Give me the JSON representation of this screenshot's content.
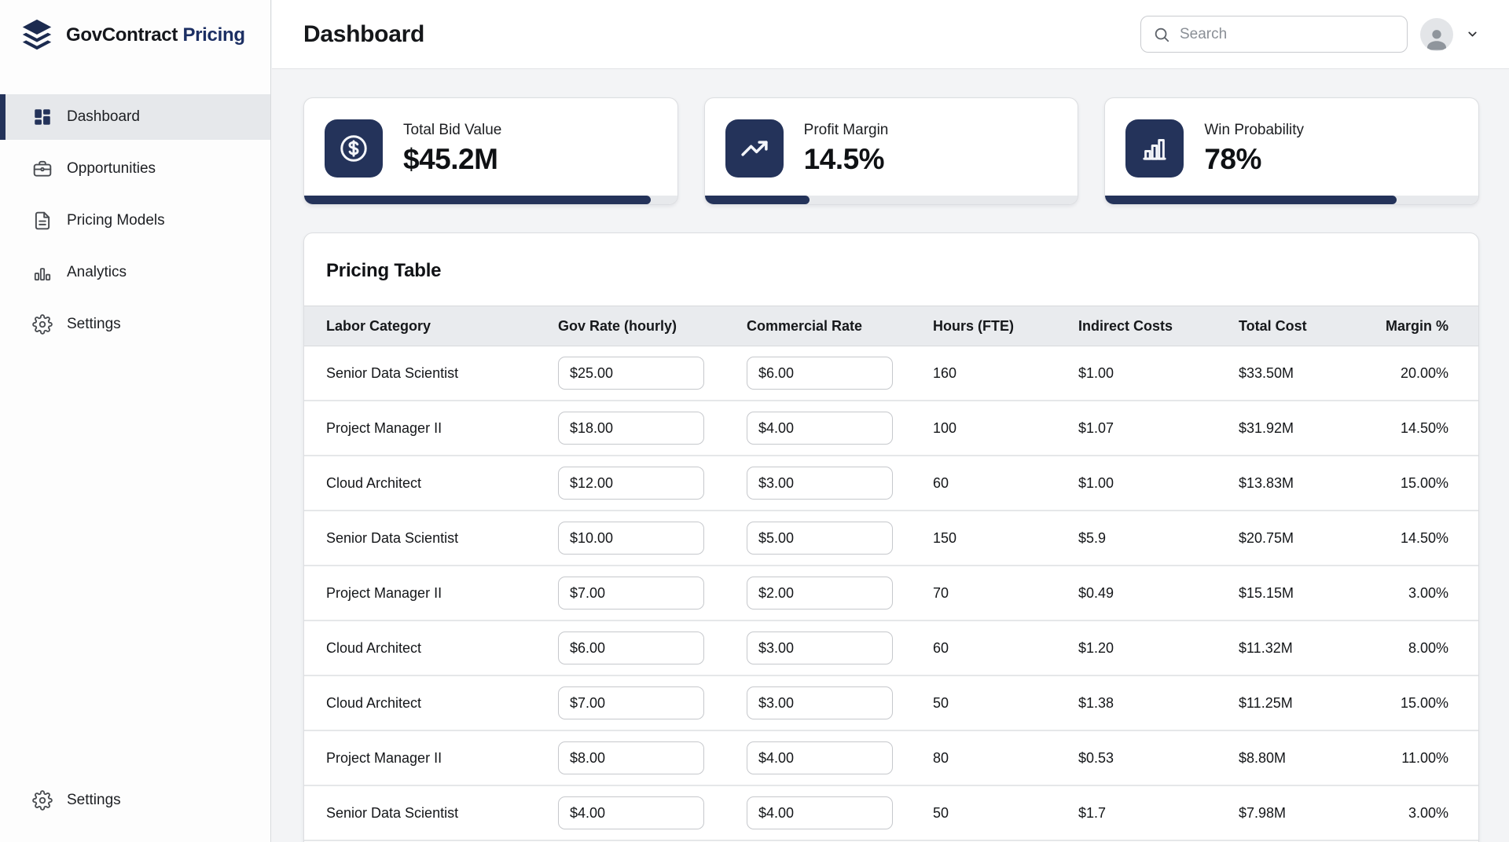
{
  "brand": {
    "name_primary": "GovContract",
    "name_secondary": "Pricing"
  },
  "sidebar": {
    "items": [
      {
        "label": "Dashboard",
        "active": true
      },
      {
        "label": "Opportunities",
        "active": false
      },
      {
        "label": "Pricing Models",
        "active": false
      },
      {
        "label": "Analytics",
        "active": false
      },
      {
        "label": "Settings",
        "active": false
      }
    ],
    "footer": {
      "label": "Settings"
    }
  },
  "header": {
    "title": "Dashboard",
    "search_placeholder": "Search"
  },
  "stats": [
    {
      "label": "Total Bid Value",
      "value": "$45.2M",
      "icon": "dollar-circle-icon",
      "progress_pct": 93
    },
    {
      "label": "Profit Margin",
      "value": "14.5%",
      "icon": "trend-up-icon",
      "progress_pct": 28
    },
    {
      "label": "Win Probability",
      "value": "78%",
      "icon": "bar-chart-icon",
      "progress_pct": 78
    }
  ],
  "pricing_table": {
    "title": "Pricing Table",
    "columns": [
      "Labor Category",
      "Gov Rate (hourly)",
      "Commercial Rate",
      "Hours (FTE)",
      "Indirect Costs",
      "Total Cost",
      "Margin %"
    ],
    "rows": [
      {
        "labor_category": "Senior Data Scientist",
        "gov_rate": "$25.00",
        "commercial_rate": "$6.00",
        "hours": "160",
        "indirect_costs": "$1.00",
        "total_cost": "$33.50M",
        "margin": "20.00%"
      },
      {
        "labor_category": "Project Manager II",
        "gov_rate": "$18.00",
        "commercial_rate": "$4.00",
        "hours": "100",
        "indirect_costs": "$1.07",
        "total_cost": "$31.92M",
        "margin": "14.50%"
      },
      {
        "labor_category": "Cloud Architect",
        "gov_rate": "$12.00",
        "commercial_rate": "$3.00",
        "hours": "60",
        "indirect_costs": "$1.00",
        "total_cost": "$13.83M",
        "margin": "15.00%"
      },
      {
        "labor_category": "Senior Data Scientist",
        "gov_rate": "$10.00",
        "commercial_rate": "$5.00",
        "hours": "150",
        "indirect_costs": "$5.9",
        "total_cost": "$20.75M",
        "margin": "14.50%"
      },
      {
        "labor_category": "Project Manager II",
        "gov_rate": "$7.00",
        "commercial_rate": "$2.00",
        "hours": "70",
        "indirect_costs": "$0.49",
        "total_cost": "$15.15M",
        "margin": "3.00%"
      },
      {
        "labor_category": "Cloud Architect",
        "gov_rate": "$6.00",
        "commercial_rate": "$3.00",
        "hours": "60",
        "indirect_costs": "$1.20",
        "total_cost": "$11.32M",
        "margin": "8.00%"
      },
      {
        "labor_category": "Cloud Architect",
        "gov_rate": "$7.00",
        "commercial_rate": "$3.00",
        "hours": "50",
        "indirect_costs": "$1.38",
        "total_cost": "$11.25M",
        "margin": "15.00%"
      },
      {
        "labor_category": "Project Manager II",
        "gov_rate": "$8.00",
        "commercial_rate": "$4.00",
        "hours": "80",
        "indirect_costs": "$0.53",
        "total_cost": "$8.80M",
        "margin": "11.00%"
      },
      {
        "labor_category": "Senior Data Scientist",
        "gov_rate": "$4.00",
        "commercial_rate": "$4.00",
        "hours": "50",
        "indirect_costs": "$1.7",
        "total_cost": "$7.98M",
        "margin": "3.00%"
      }
    ]
  },
  "colors": {
    "navy": "#24335a",
    "progress_track": "#e7e9ec",
    "active_nav_bg": "#e6e8eb"
  }
}
